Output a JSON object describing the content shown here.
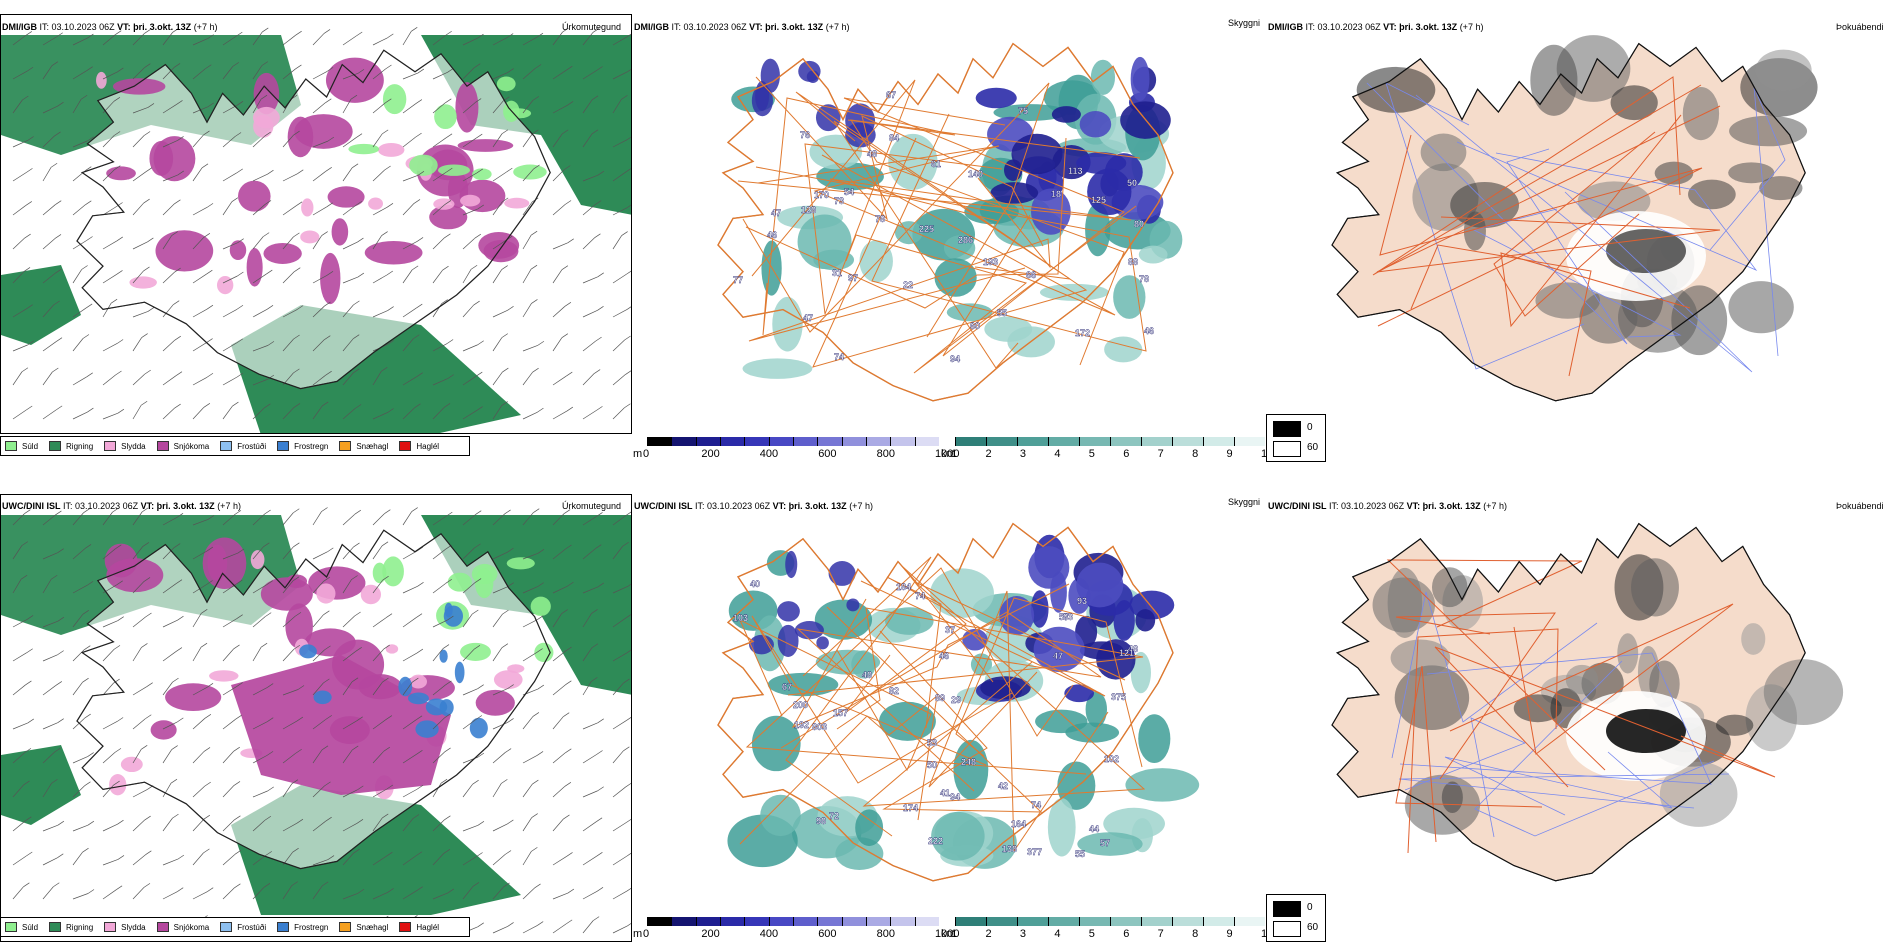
{
  "header_top": {
    "model": "DMI/IGB",
    "it_label": "IT:",
    "it_value": "03.10.2023 06Z",
    "vt_label": "VT:",
    "vt_value": "þri. 3.okt. 13Z",
    "lead": "(+7 h)"
  },
  "header_bottom": {
    "model": "UWC/DINI ISL",
    "it_label": "IT:",
    "it_value": "03.10.2023 06Z",
    "vt_label": "VT:",
    "vt_value": "þri. 3.okt. 13Z",
    "lead": "(+7 h)"
  },
  "panel_titles": {
    "precip_type": "Úrkomutegund",
    "visibility": "Skyggni",
    "fog": "Þokuábendi"
  },
  "precip_legend": [
    {
      "label": "Súld",
      "color": "#8fef8f"
    },
    {
      "label": "Rigning",
      "color": "#2e8b57"
    },
    {
      "label": "Slydda",
      "color": "#f2a8d8"
    },
    {
      "label": "Snjókoma",
      "color": "#b5479e"
    },
    {
      "label": "Frostúði",
      "color": "#8ec0f0"
    },
    {
      "label": "Frostregn",
      "color": "#3a7fd0"
    },
    {
      "label": "Snæhagl",
      "color": "#f5a020"
    },
    {
      "label": "Haglél",
      "color": "#e01010"
    }
  ],
  "vis_m_scale": {
    "unit": "m",
    "ticks": [
      "0",
      "200",
      "400",
      "600",
      "800",
      "1000"
    ]
  },
  "vis_km_scale": {
    "unit": "km",
    "ticks": [
      "1",
      "2",
      "3",
      "4",
      "5",
      "6",
      "7",
      "8",
      "9",
      "10"
    ]
  },
  "fog_legend": {
    "low": "0",
    "high": "60"
  },
  "vis_labels_top": [
    "77",
    "113",
    "75",
    "73",
    "22",
    "88",
    "76",
    "97",
    "67",
    "50",
    "47",
    "78",
    "31",
    "61",
    "46",
    "60",
    "48",
    "66",
    "47",
    "46",
    "74",
    "55",
    "54",
    "128",
    "84",
    "125",
    "170",
    "172",
    "225",
    "140",
    "286",
    "193",
    "80",
    "78",
    "18",
    "94"
  ],
  "vis_labels_bottom": [
    "103",
    "93",
    "55",
    "74",
    "67",
    "50",
    "46",
    "41",
    "40",
    "53",
    "57",
    "48",
    "42",
    "44",
    "47",
    "98",
    "82",
    "138",
    "74",
    "48",
    "72",
    "94",
    "102",
    "377",
    "222",
    "121",
    "200",
    "157",
    "184",
    "803",
    "192",
    "164",
    "375",
    "174",
    "248",
    "29",
    "37",
    "83",
    "89",
    "57"
  ]
}
